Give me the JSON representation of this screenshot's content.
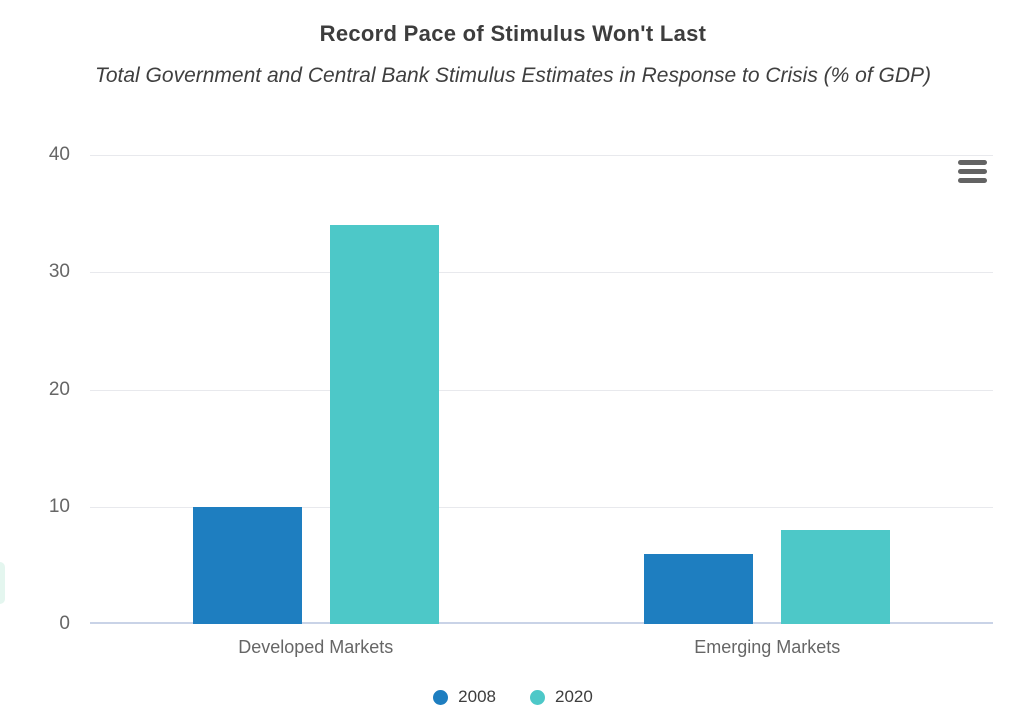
{
  "chart_data": {
    "type": "bar",
    "title": "Record Pace of Stimulus Won't Last",
    "subtitle": "Total Government and Central Bank Stimulus Estimates in Response to Crisis (% of GDP)",
    "categories": [
      "Developed Markets",
      "Emerging Markets"
    ],
    "series": [
      {
        "name": "2008",
        "color": "#1e7ec0",
        "values": [
          10,
          6
        ]
      },
      {
        "name": "2020",
        "color": "#4dc8c8",
        "values": [
          34,
          8
        ]
      }
    ],
    "xlabel": "",
    "ylabel": "",
    "ylim": [
      0,
      40
    ],
    "yticks": [
      0,
      10,
      20,
      30,
      40
    ],
    "grid": true,
    "legend_position": "bottom"
  },
  "colors": {
    "background": "#ffffff",
    "title_text": "#3d3d3d",
    "axis_text": "#666666",
    "gridline": "#e8e9ed",
    "zero_line": "#c9d3e7",
    "menu_icon": "#636363",
    "series_2008": "#1e7ec0",
    "series_2020": "#4dc8c8"
  },
  "icons": {
    "context_menu": "hamburger-icon"
  }
}
